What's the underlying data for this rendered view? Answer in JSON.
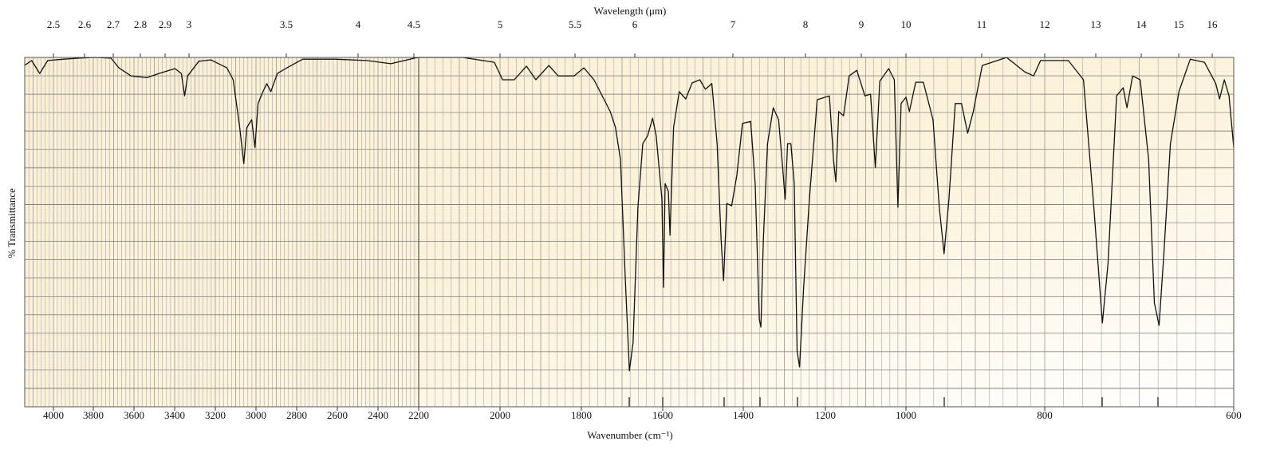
{
  "chart_data": {
    "type": "line",
    "x_label_top": "Wavelength (μm)",
    "x_label": "Wavenumber (cm⁻¹)",
    "y_label": "% Transmittance",
    "xlim": [
      4140,
      600
    ],
    "xticks": [
      4000,
      3800,
      3600,
      3400,
      3200,
      3000,
      2800,
      2600,
      2400,
      2200,
      2000,
      1800,
      1600,
      1400,
      1200,
      1000,
      800,
      600
    ],
    "x2ticks": [
      2.5,
      2.6,
      2.7,
      2.8,
      2.9,
      3,
      3.5,
      4,
      4.5,
      5,
      5.5,
      6,
      7,
      8,
      9,
      10,
      11,
      12,
      13,
      14,
      15,
      16
    ],
    "ylim": [
      0,
      100
    ],
    "grid": true,
    "series": [
      {
        "color": "#111111",
        "x": [
          4141,
          4106,
          4067,
          4028,
          3949,
          3870,
          3792,
          3713,
          3674,
          3615,
          3536,
          3477,
          3399,
          3367,
          3351,
          3336,
          3281,
          3222,
          3143,
          3112,
          3096,
          3080,
          3060,
          3045,
          3021,
          3005,
          2990,
          2966,
          2947,
          2927,
          2895,
          2848,
          2770,
          2612,
          2455,
          2337,
          2220,
          2200,
          2092,
          2014,
          1994,
          1965,
          1935,
          1912,
          1880,
          1857,
          1818,
          1794,
          1769,
          1729,
          1716,
          1704,
          1692,
          1682,
          1673,
          1661,
          1649,
          1637,
          1625,
          1616,
          1602,
          1598,
          1594,
          1586,
          1582,
          1573,
          1559,
          1543,
          1527,
          1508,
          1494,
          1478,
          1465,
          1455,
          1449,
          1441,
          1429,
          1416,
          1402,
          1382,
          1371,
          1361,
          1357,
          1351,
          1341,
          1327,
          1314,
          1304,
          1298,
          1292,
          1284,
          1276,
          1269,
          1263,
          1253,
          1239,
          1220,
          1190,
          1180,
          1174,
          1167,
          1155,
          1141,
          1122,
          1102,
          1088,
          1076,
          1065,
          1043,
          1029,
          1020,
          1012,
          1000,
          995,
          986,
          975,
          961,
          952,
          945,
          938,
          929,
          920,
          911,
          903,
          890,
          855,
          829,
          816,
          806,
          775,
          759,
          748,
          739,
          733,
          724,
          717,
          713,
          707,
          699,
          690,
          684,
          679,
          674,
          667,
          658,
          646,
          631,
          619,
          615,
          610,
          605,
          600
        ],
        "values": [
          97.7,
          99.1,
          95.4,
          99.1,
          99.5,
          99.8,
          100,
          99.8,
          97.0,
          94.7,
          94.2,
          95.4,
          96.8,
          95.4,
          89.0,
          94.7,
          98.9,
          99.3,
          97.0,
          93.6,
          86.8,
          79.9,
          69.6,
          79.9,
          82.2,
          74.2,
          86.8,
          90.2,
          92.5,
          90.2,
          95.4,
          97.0,
          99.5,
          99.5,
          99.1,
          98.2,
          99.8,
          100,
          100,
          98.6,
          93.6,
          93.6,
          97.5,
          93.6,
          97.7,
          94.7,
          94.7,
          97.0,
          93.6,
          84.5,
          79.9,
          70.8,
          36.5,
          10.3,
          18.3,
          57.1,
          75.3,
          77.6,
          82.6,
          77.6,
          59.4,
          34.2,
          63.9,
          61.6,
          49.1,
          79.9,
          90.2,
          88.1,
          92.7,
          93.6,
          90.9,
          92.5,
          75.3,
          47.9,
          36.1,
          58.2,
          57.5,
          66.2,
          81.1,
          81.7,
          63.9,
          25.1,
          22.8,
          47.9,
          75.3,
          85.6,
          82.2,
          68.5,
          59.4,
          75.3,
          75.3,
          63.9,
          16.0,
          11.4,
          34.2,
          59.4,
          87.9,
          89.0,
          70.8,
          64.4,
          84.5,
          83.3,
          94.7,
          96.3,
          89.0,
          89.5,
          68.5,
          93.2,
          96.8,
          93.6,
          57.1,
          86.8,
          88.6,
          84.5,
          92.9,
          92.9,
          82.2,
          57.1,
          43.8,
          59.4,
          86.8,
          86.8,
          78.3,
          84.5,
          97.7,
          100,
          95.9,
          94.7,
          99.1,
          99.1,
          93.6,
          57.1,
          24.0,
          41.1,
          89.0,
          91.3,
          85.6,
          94.7,
          93.6,
          70.8,
          29.7,
          23.3,
          43.4,
          75.3,
          90.2,
          99.5,
          98.6,
          92.5,
          88.1,
          93.6,
          89.0,
          74.2
        ]
      }
    ]
  }
}
